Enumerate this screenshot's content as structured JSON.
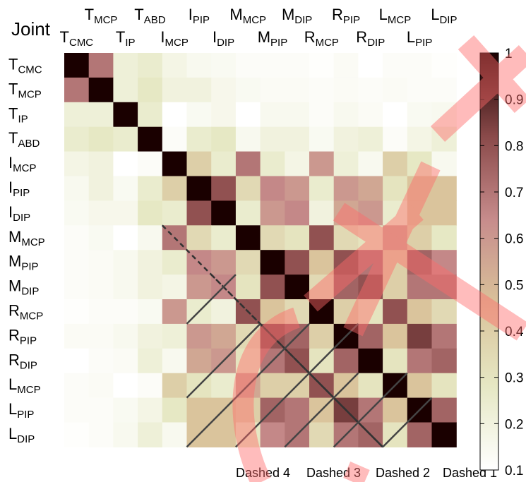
{
  "chart_data": {
    "type": "heatmap",
    "corner_label": "Joint",
    "joints": [
      {
        "main": "T",
        "sub": "CMC"
      },
      {
        "main": "T",
        "sub": "MCP"
      },
      {
        "main": "T",
        "sub": "IP"
      },
      {
        "main": "T",
        "sub": "ABD"
      },
      {
        "main": "I",
        "sub": "MCP"
      },
      {
        "main": "I",
        "sub": "PIP"
      },
      {
        "main": "I",
        "sub": "DIP"
      },
      {
        "main": "M",
        "sub": "MCP"
      },
      {
        "main": "M",
        "sub": "PIP"
      },
      {
        "main": "M",
        "sub": "DIP"
      },
      {
        "main": "R",
        "sub": "MCP"
      },
      {
        "main": "R",
        "sub": "PIP"
      },
      {
        "main": "R",
        "sub": "DIP"
      },
      {
        "main": "L",
        "sub": "MCP"
      },
      {
        "main": "L",
        "sub": "PIP"
      },
      {
        "main": "L",
        "sub": "DIP"
      }
    ],
    "values": [
      [
        1.0,
        0.7,
        0.22,
        0.25,
        0.18,
        0.15,
        0.14,
        0.12,
        0.12,
        0.12,
        0.11,
        0.13,
        0.1,
        0.12,
        0.12,
        0.11
      ],
      [
        0.7,
        1.0,
        0.22,
        0.28,
        0.2,
        0.2,
        0.16,
        0.14,
        0.13,
        0.13,
        0.12,
        0.13,
        0.12,
        0.13,
        0.12,
        0.12
      ],
      [
        0.22,
        0.22,
        1.0,
        0.25,
        0.1,
        0.14,
        0.16,
        0.1,
        0.15,
        0.15,
        0.12,
        0.15,
        0.13,
        0.1,
        0.14,
        0.15
      ],
      [
        0.25,
        0.28,
        0.25,
        1.0,
        0.12,
        0.25,
        0.28,
        0.15,
        0.2,
        0.2,
        0.14,
        0.2,
        0.22,
        0.12,
        0.18,
        0.22
      ],
      [
        0.18,
        0.2,
        0.1,
        0.12,
        1.0,
        0.4,
        0.25,
        0.7,
        0.25,
        0.18,
        0.6,
        0.22,
        0.15,
        0.4,
        0.28,
        0.15
      ],
      [
        0.15,
        0.2,
        0.14,
        0.25,
        0.4,
        1.0,
        0.8,
        0.35,
        0.65,
        0.6,
        0.25,
        0.6,
        0.55,
        0.3,
        0.45,
        0.45
      ],
      [
        0.14,
        0.16,
        0.16,
        0.28,
        0.25,
        0.8,
        1.0,
        0.25,
        0.6,
        0.65,
        0.2,
        0.55,
        0.6,
        0.25,
        0.45,
        0.45
      ],
      [
        0.12,
        0.14,
        0.1,
        0.15,
        0.7,
        0.35,
        0.25,
        1.0,
        0.35,
        0.3,
        0.8,
        0.35,
        0.3,
        0.55,
        0.4,
        0.28
      ],
      [
        0.12,
        0.13,
        0.15,
        0.2,
        0.25,
        0.65,
        0.6,
        0.35,
        1.0,
        0.8,
        0.45,
        0.8,
        0.7,
        0.4,
        0.75,
        0.65
      ],
      [
        0.12,
        0.13,
        0.15,
        0.2,
        0.18,
        0.6,
        0.65,
        0.3,
        0.8,
        1.0,
        0.35,
        0.75,
        0.8,
        0.4,
        0.7,
        0.7
      ],
      [
        0.11,
        0.12,
        0.12,
        0.14,
        0.6,
        0.25,
        0.2,
        0.8,
        0.45,
        0.35,
        1.0,
        0.4,
        0.3,
        0.8,
        0.45,
        0.35
      ],
      [
        0.13,
        0.13,
        0.15,
        0.2,
        0.22,
        0.6,
        0.55,
        0.35,
        0.8,
        0.75,
        0.4,
        1.0,
        0.75,
        0.45,
        0.85,
        0.7
      ],
      [
        0.1,
        0.12,
        0.13,
        0.22,
        0.15,
        0.55,
        0.6,
        0.3,
        0.7,
        0.8,
        0.3,
        0.75,
        1.0,
        0.3,
        0.7,
        0.75
      ],
      [
        0.12,
        0.13,
        0.1,
        0.12,
        0.4,
        0.3,
        0.25,
        0.55,
        0.4,
        0.4,
        0.8,
        0.45,
        0.3,
        1.0,
        0.45,
        0.3
      ],
      [
        0.12,
        0.12,
        0.14,
        0.18,
        0.28,
        0.45,
        0.45,
        0.4,
        0.75,
        0.7,
        0.45,
        0.85,
        0.7,
        0.45,
        1.0,
        0.75
      ],
      [
        0.11,
        0.12,
        0.15,
        0.22,
        0.15,
        0.45,
        0.45,
        0.28,
        0.65,
        0.7,
        0.35,
        0.7,
        0.75,
        0.3,
        0.75,
        1.0
      ]
    ],
    "colorbar": {
      "range": [
        0.1,
        1
      ],
      "ticks": [
        "1",
        "0.9",
        "0.8",
        "0.7",
        "0.6",
        "0.5",
        "0.4",
        "0.3",
        "0.2",
        "0.1"
      ]
    },
    "colormap": [
      "#ffffff",
      "#e6e8c4",
      "#d9c29a",
      "#c78c8c",
      "#8a4a4a",
      "#1a0000"
    ],
    "dashed_lines": [
      {
        "label": "Dashed 4",
        "offset": 7
      },
      {
        "label": "Dashed 3",
        "offset": 5
      },
      {
        "label": "Dashed 2",
        "offset": 3
      },
      {
        "label": "Dashed 1",
        "offset": 1
      }
    ],
    "watermark_color": "#ff6a6a"
  }
}
